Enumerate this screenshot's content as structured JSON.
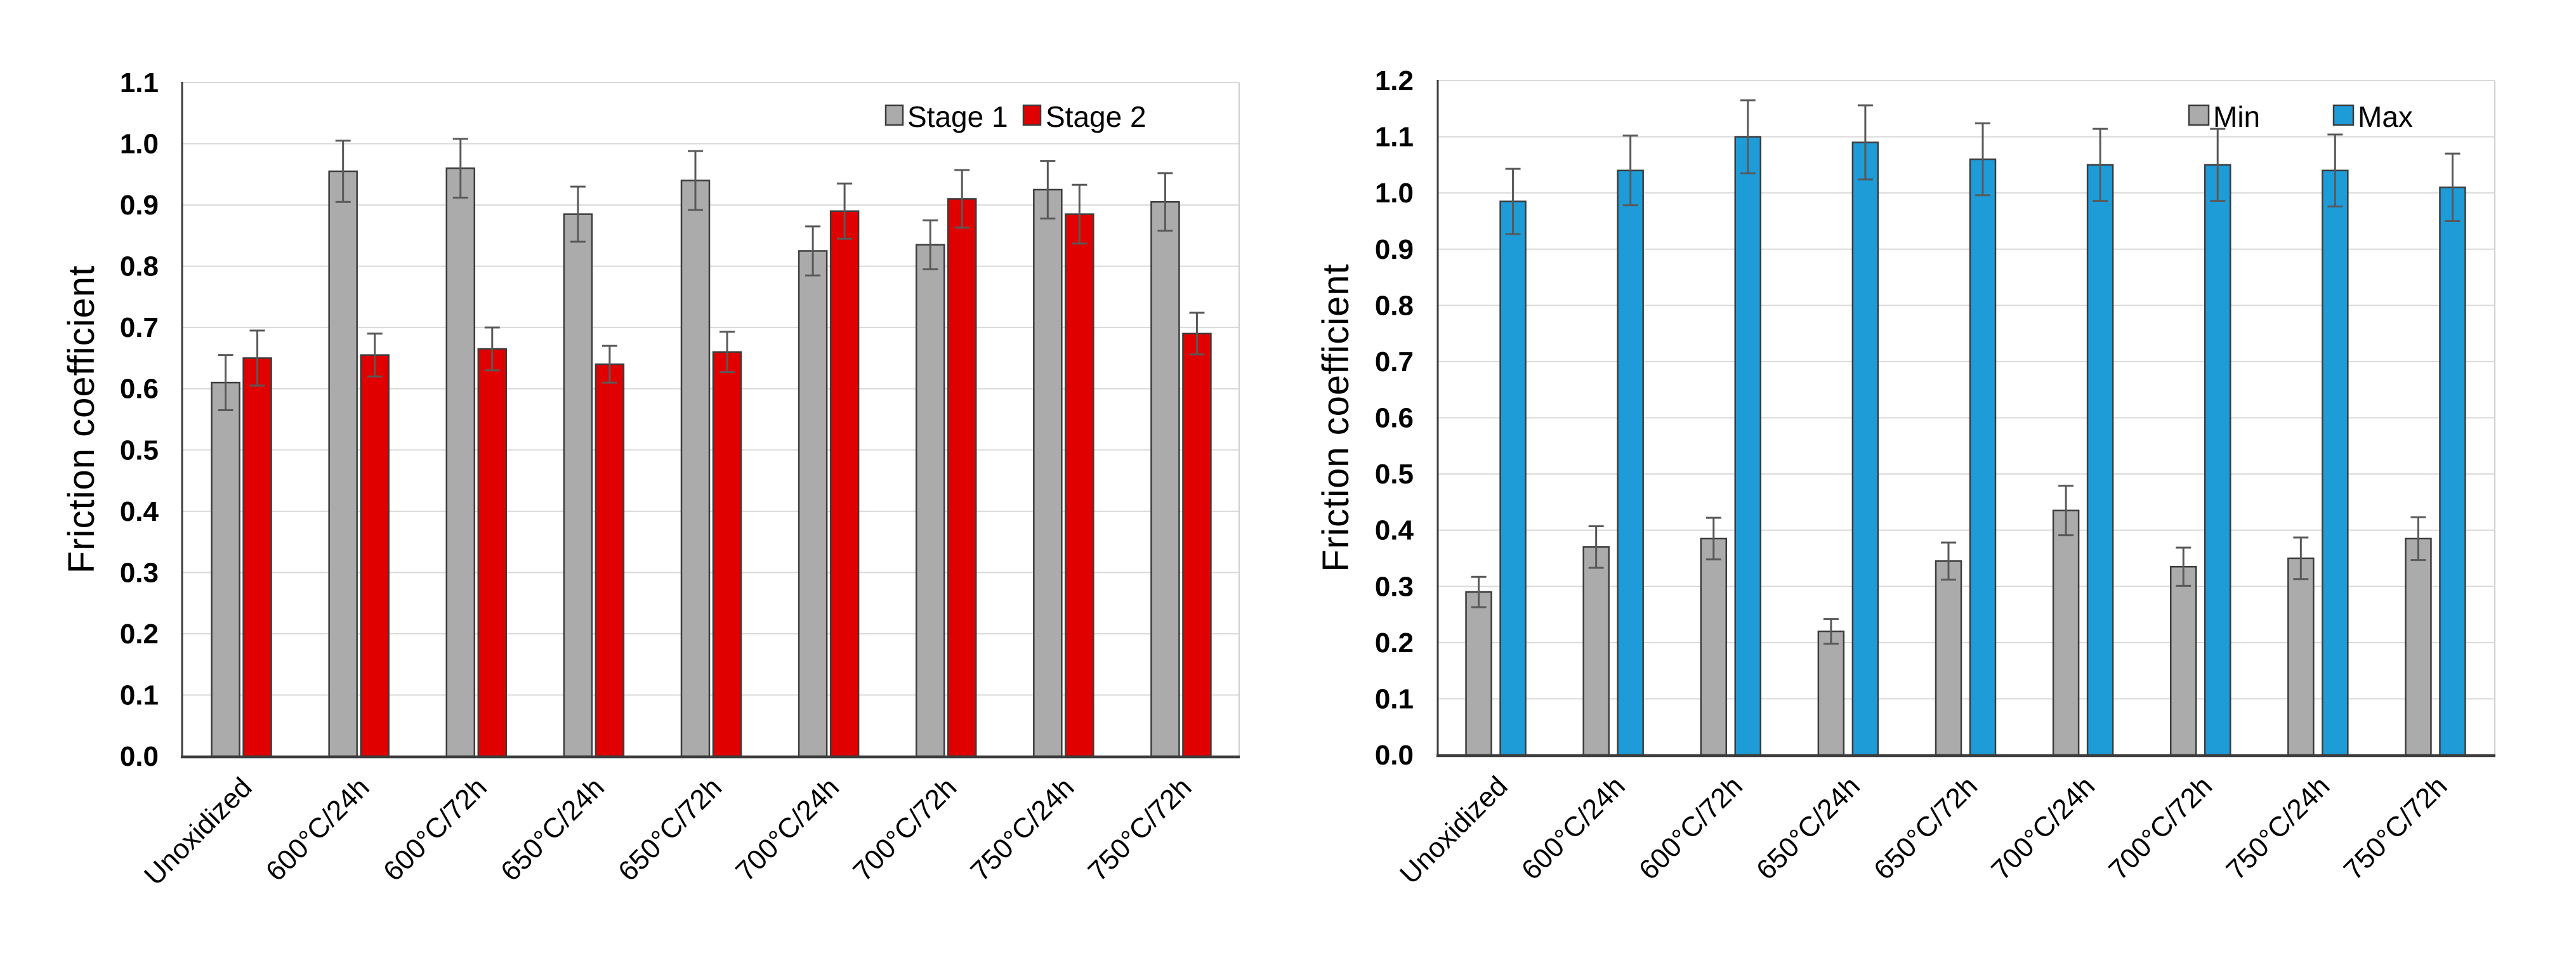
{
  "figure": {
    "background": "#FFFFFF",
    "description": "Two grouped bar charts of friction coefficient versus oxidation condition"
  },
  "style": {
    "gridline_color": "#D9D9D9",
    "plot_border_color": "#D0D0D0",
    "axis_color": "#3C3C3C",
    "bar_outline_color": "#3C3C3C",
    "error_bar_color": "#595959",
    "text_color": "#000000"
  },
  "chart_data": [
    {
      "type": "bar",
      "title": "",
      "xlabel": "",
      "ylabel": "Friction coefficient",
      "ylim": [
        0.0,
        1.1
      ],
      "ytick_step": 0.1,
      "yticks": [
        "0.0",
        "0.1",
        "0.2",
        "0.3",
        "0.4",
        "0.5",
        "0.6",
        "0.7",
        "0.8",
        "0.9",
        "1.0",
        "1.1"
      ],
      "grid": true,
      "legend_position": "top-right-inside",
      "categories": [
        "Unoxidized",
        "600°C/24h",
        "600°C/72h",
        "650°C/24h",
        "650°C/72h",
        "700°C/24h",
        "700°C/72h",
        "750°C/24h",
        "750°C/72h"
      ],
      "series": [
        {
          "name": "Stage 1",
          "color": "#ABABAB",
          "values": [
            0.61,
            0.955,
            0.96,
            0.885,
            0.94,
            0.825,
            0.835,
            0.925,
            0.905
          ],
          "errors": [
            0.045,
            0.05,
            0.048,
            0.045,
            0.048,
            0.04,
            0.04,
            0.047,
            0.047
          ]
        },
        {
          "name": "Stage 2",
          "color": "#E00000",
          "values": [
            0.65,
            0.655,
            0.665,
            0.64,
            0.66,
            0.89,
            0.91,
            0.885,
            0.69
          ],
          "errors": [
            0.045,
            0.035,
            0.035,
            0.03,
            0.033,
            0.045,
            0.047,
            0.048,
            0.034
          ]
        }
      ]
    },
    {
      "type": "bar",
      "title": "",
      "xlabel": "",
      "ylabel": "Friction coefficient",
      "ylim": [
        0.0,
        1.2
      ],
      "ytick_step": 0.1,
      "yticks": [
        "0.0",
        "0.1",
        "0.2",
        "0.3",
        "0.4",
        "0.5",
        "0.6",
        "0.7",
        "0.8",
        "0.9",
        "1.0",
        "1.1",
        "1.2"
      ],
      "grid": true,
      "legend_position": "top-right-inside",
      "categories": [
        "Unoxidized",
        "600°C/24h",
        "600°C/72h",
        "650°C/24h",
        "650°C/72h",
        "700°C/24h",
        "700°C/72h",
        "750°C/24h",
        "750°C/72h"
      ],
      "series": [
        {
          "name": "Min",
          "color": "#ABABAB",
          "values": [
            0.29,
            0.37,
            0.385,
            0.22,
            0.345,
            0.435,
            0.335,
            0.35,
            0.385
          ],
          "errors": [
            0.027,
            0.037,
            0.037,
            0.022,
            0.033,
            0.044,
            0.034,
            0.037,
            0.038
          ]
        },
        {
          "name": "Max",
          "color": "#1E9CD8",
          "values": [
            0.985,
            1.04,
            1.1,
            1.09,
            1.06,
            1.05,
            1.05,
            1.04,
            1.01
          ],
          "errors": [
            0.058,
            0.062,
            0.065,
            0.066,
            0.064,
            0.064,
            0.064,
            0.064,
            0.06
          ]
        }
      ]
    }
  ]
}
